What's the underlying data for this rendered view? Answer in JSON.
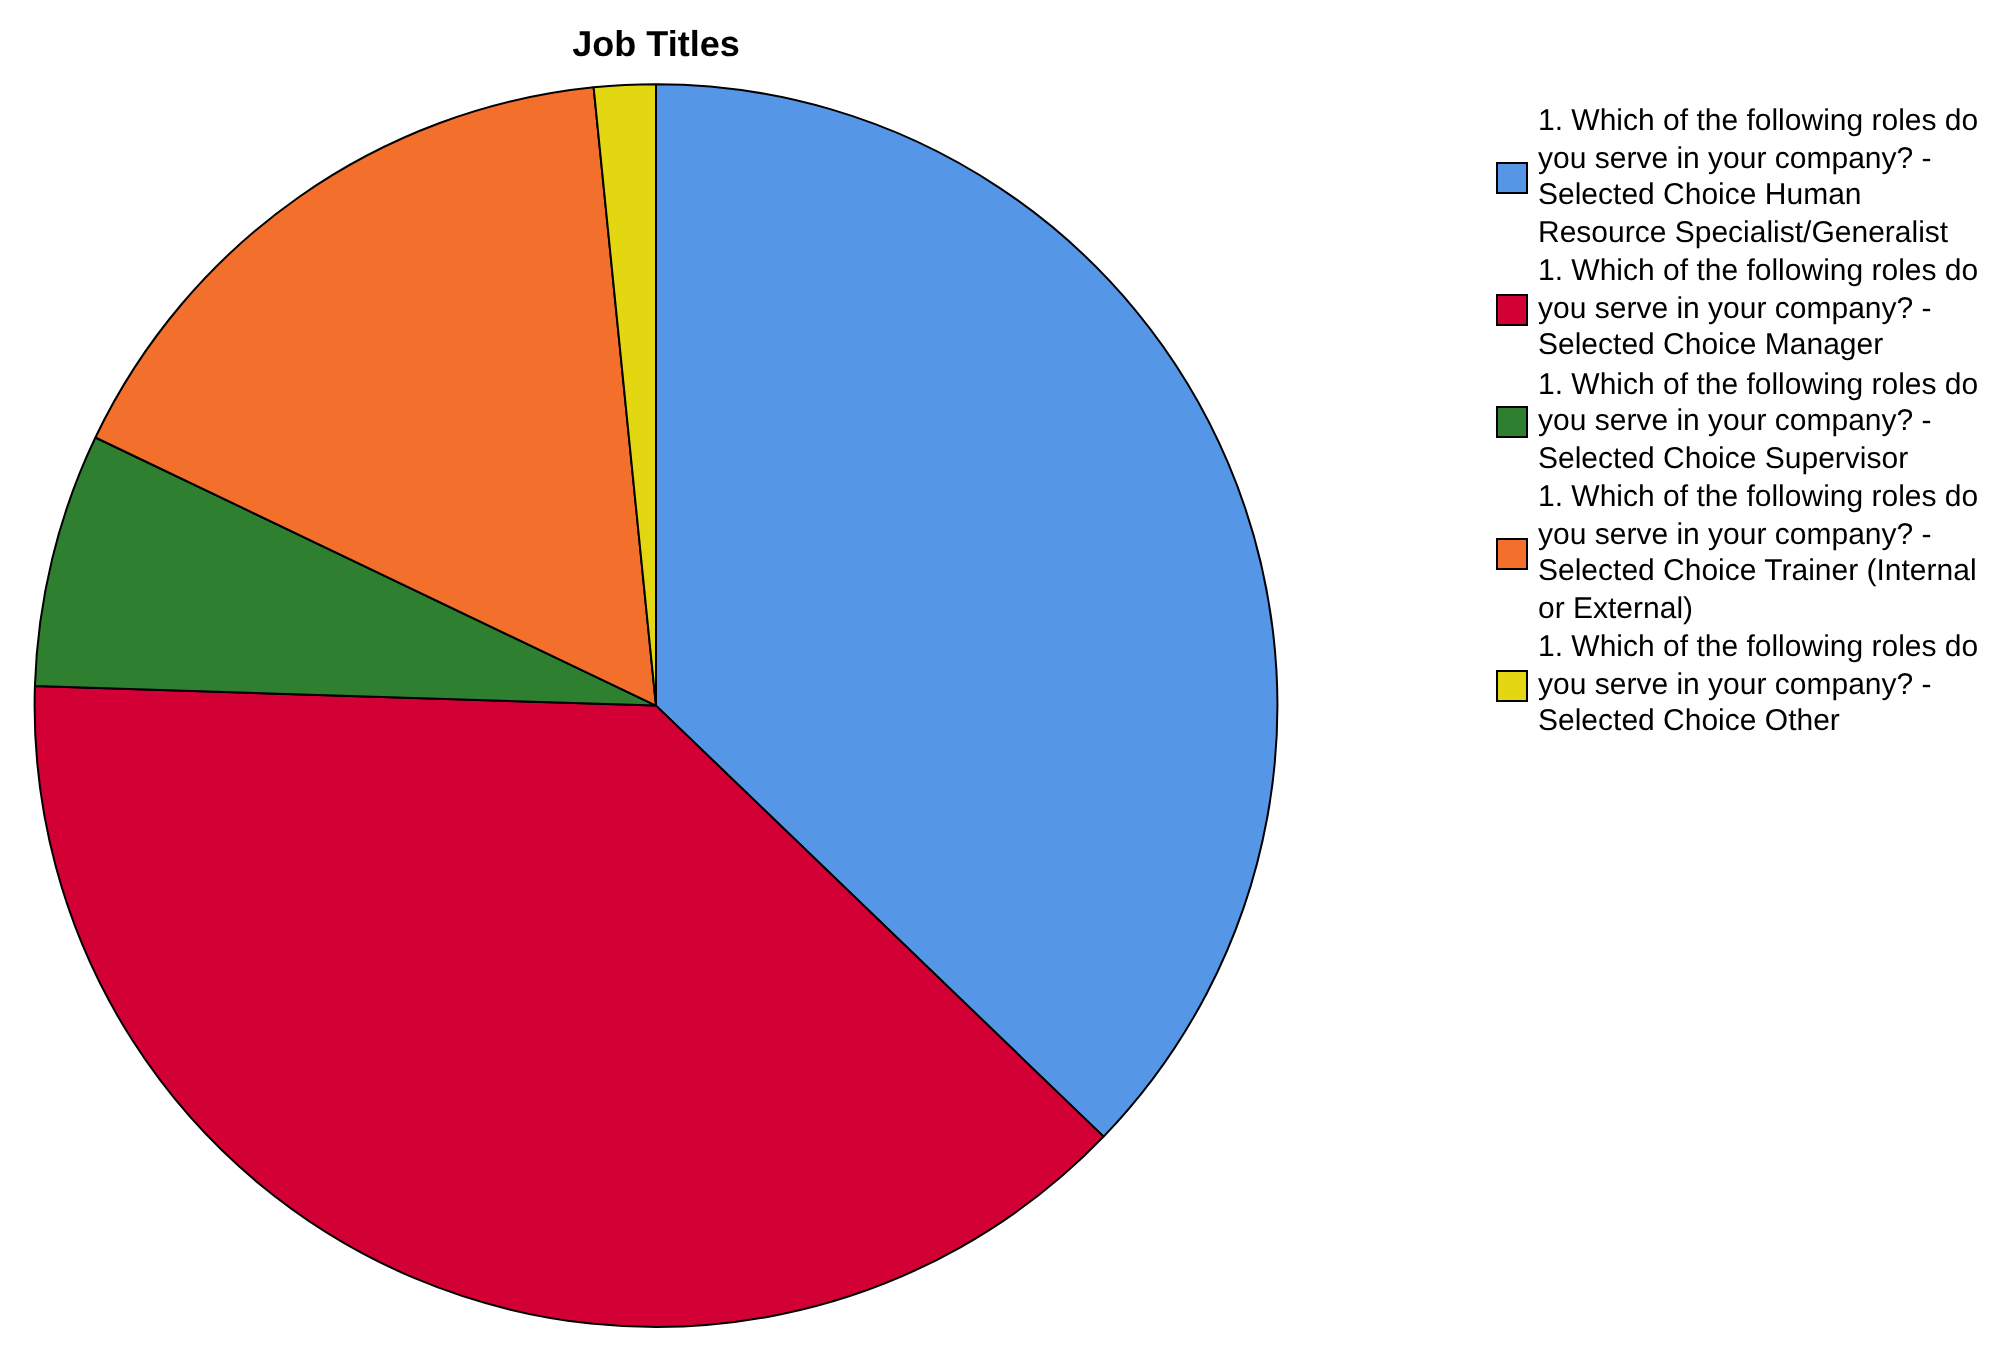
{
  "chart_data": {
    "type": "pie",
    "title": "Job Titles",
    "categories": [
      "1. Which of the following roles do you serve in your company? - Selected Choice Human Resource Specialist/Generalist",
      "1. Which of the following roles do you serve in your company? - Selected Choice Manager",
      "1. Which of the following roles do you serve in your company? - Selected Choice Supervisor",
      "1. Which of the following roles do you serve in your company? - Selected Choice Trainer (Internal or External)",
      "1. Which of the following roles do you serve in your company? - Selected Choice Other"
    ],
    "values": [
      37.2,
      38.3,
      6.6,
      16.3,
      1.6
    ],
    "colors": [
      "#5596e6",
      "#d20034",
      "#2e8030",
      "#f26f2c",
      "#e2d711"
    ],
    "legend": "right"
  }
}
